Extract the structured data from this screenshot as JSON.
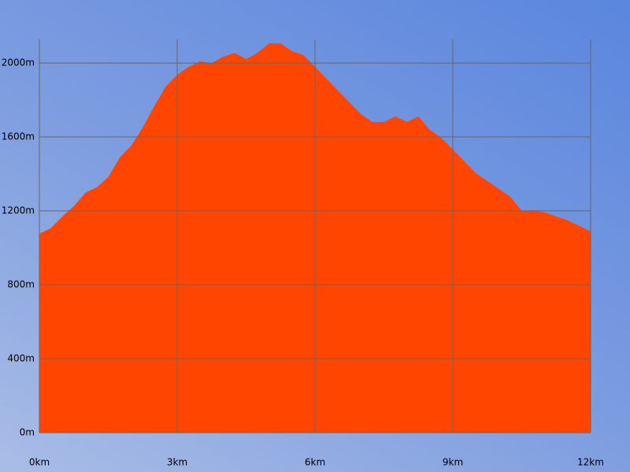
{
  "chart_data": {
    "type": "area",
    "x": [
      0,
      0.25,
      0.5,
      0.75,
      1,
      1.25,
      1.5,
      1.75,
      2,
      2.25,
      2.5,
      2.75,
      3,
      3.25,
      3.5,
      3.75,
      4,
      4.25,
      4.5,
      4.75,
      5,
      5.25,
      5.5,
      5.75,
      6,
      6.25,
      6.5,
      6.75,
      7,
      7.25,
      7.5,
      7.75,
      8,
      8.25,
      8.5,
      8.75,
      9,
      9.25,
      9.5,
      9.75,
      10,
      10.25,
      10.5,
      10.75,
      11,
      11.25,
      11.5,
      11.75,
      12
    ],
    "values": [
      1077,
      1106,
      1170,
      1225,
      1298,
      1328,
      1383,
      1489,
      1553,
      1651,
      1766,
      1872,
      1936,
      1979,
      2009,
      2000,
      2034,
      2055,
      2021,
      2055,
      2106,
      2106,
      2064,
      2043,
      1979,
      1915,
      1851,
      1787,
      1723,
      1681,
      1681,
      1711,
      1681,
      1711,
      1638,
      1596,
      1532,
      1468,
      1404,
      1362,
      1319,
      1277,
      1200,
      1204,
      1191,
      1170,
      1149,
      1119,
      1089
    ],
    "color": "#ff4500",
    "xlim": [
      0,
      12
    ],
    "ylim": [
      0,
      2128
    ],
    "xticks": [
      {
        "value": 0,
        "label": "0km"
      },
      {
        "value": 3,
        "label": "3km"
      },
      {
        "value": 6,
        "label": "6km"
      },
      {
        "value": 9,
        "label": "9km"
      },
      {
        "value": 12,
        "label": "12km"
      }
    ],
    "yticks": [
      {
        "value": 0,
        "label": "0m"
      },
      {
        "value": 400,
        "label": "400m"
      },
      {
        "value": 800,
        "label": "800m"
      },
      {
        "value": 1200,
        "label": "1200m"
      },
      {
        "value": 1600,
        "label": "1600m"
      },
      {
        "value": 2000,
        "label": "2000m"
      }
    ],
    "grid": true
  }
}
